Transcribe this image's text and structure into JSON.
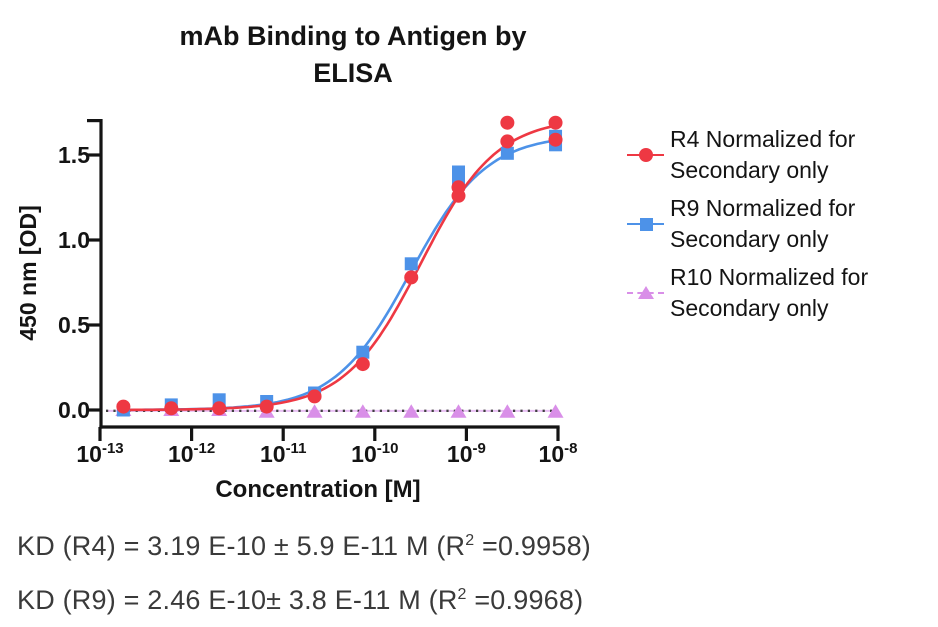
{
  "figure": {
    "background": "#FFFFFF",
    "text_color": "#141414"
  },
  "chart_data": {
    "type": "scatter",
    "subtype": "sigmoidal-dose-response-fit",
    "title": "mAb Binding to Antigen by ELISA",
    "title_lines": {
      "line1": "mAb Binding to Antigen by",
      "line2": "ELISA"
    },
    "xlabel": "Concentration [M]",
    "ylabel": "450 nm [OD]",
    "x_scale": "log10",
    "x_tick_exponents": [
      -13,
      -12,
      -11,
      -10,
      -9,
      -8
    ],
    "y_ticks": [
      0.0,
      0.5,
      1.0,
      1.5
    ],
    "ylim": [
      -0.1,
      1.75
    ],
    "grid": false,
    "legend_position": "right",
    "concentrations_M": [
      1.8e-13,
      6e-13,
      2e-12,
      6.6e-12,
      2.2e-11,
      7.4e-11,
      2.5e-10,
      8.2e-10,
      2.8e-09,
      9.4e-09
    ],
    "series": [
      {
        "name": "R4 Normalized for Secondary only",
        "marker": "circle",
        "color": "#EE3843",
        "line": "solid",
        "od_replicates": [
          [
            0.02
          ],
          [
            0.01
          ],
          [
            0.01
          ],
          [
            0.02
          ],
          [
            0.08
          ],
          [
            0.27
          ],
          [
            0.78
          ],
          [
            1.26,
            1.31
          ],
          [
            1.58,
            1.69
          ],
          [
            1.59,
            1.69
          ]
        ],
        "fit": {
          "model": "sigmoidal",
          "bottom": 0.0,
          "top": 1.72,
          "logEC50": -9.5,
          "hill": 1.05
        }
      },
      {
        "name": "R9 Normalized for Secondary only",
        "marker": "square",
        "color": "#4D92E8",
        "line": "solid",
        "od_replicates": [
          [
            0.0
          ],
          [
            0.03
          ],
          [
            0.06
          ],
          [
            0.05
          ],
          [
            0.1
          ],
          [
            0.34
          ],
          [
            0.86
          ],
          [
            1.33,
            1.4
          ],
          [
            1.51
          ],
          [
            1.56,
            1.61
          ]
        ],
        "fit": {
          "model": "sigmoidal",
          "bottom": 0.0,
          "top": 1.62,
          "logEC50": -9.61,
          "hill": 1.05
        }
      },
      {
        "name": "R10 Normalized for Secondary only",
        "marker": "triangle",
        "color": "#D98FE8",
        "line": "dotted",
        "od_replicates": [
          [
            0.0
          ],
          [
            0.0
          ],
          [
            0.0
          ],
          [
            -0.01
          ],
          [
            -0.01
          ],
          [
            -0.01
          ],
          [
            -0.01
          ],
          [
            -0.01
          ],
          [
            -0.01
          ],
          [
            -0.01
          ]
        ],
        "fit": null
      }
    ]
  },
  "kd": {
    "lines": [
      {
        "pre": "KD (R4) = 3.19 E-10 ± 5.9 E-11 M (R",
        "sup": "2",
        "post": " =0.9958)"
      },
      {
        "pre": "KD (R9) = 2.46 E-10± 3.8 E-11 M (R",
        "sup": "2",
        "post": " =0.9968)"
      }
    ]
  }
}
